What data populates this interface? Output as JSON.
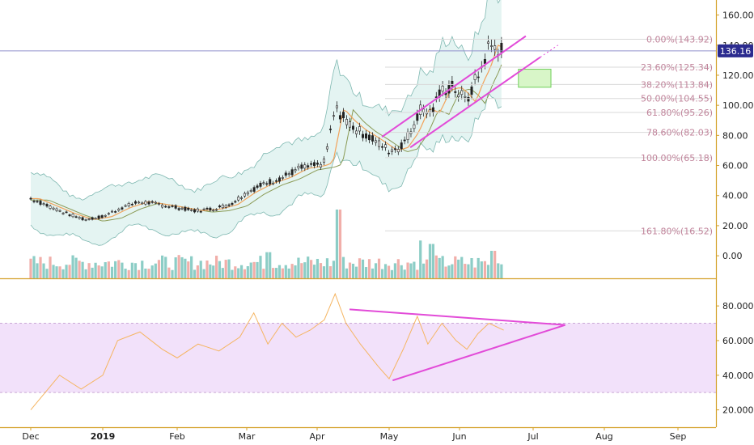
{
  "colors": {
    "background": "#ffffff",
    "axis": "#d4a12a",
    "bollinger_fill": "#e4f4f2",
    "bollinger_line": "#7fb8b1",
    "candle_up": "#222222",
    "candle_down": "#222222",
    "ma_fast": "#f2a25a",
    "ma_slow": "#8a9a55",
    "volume_up": "#7fc8c0",
    "volume_down": "#f0a5a0",
    "channel": "#e24bd8",
    "fib_line": "#d9d9d9",
    "fib_label": "#c0839a",
    "price_line": "#9090cc",
    "price_badge": "#2b2b8f",
    "target_box_fill": "#d8f6c8",
    "target_box_stroke": "#6fcf5a",
    "rsi_band": "#f2e1fa",
    "rsi_line": "#f5b562",
    "rsi_triangle": "#e24bd8"
  },
  "chart_data": [
    {
      "type": "candlestick",
      "panel": "price",
      "x": [
        "Dec",
        "2019",
        "Feb",
        "Mar",
        "Apr",
        "May",
        "Jun",
        "Jul",
        "Aug",
        "Sep"
      ],
      "ylim": [
        -15,
        170
      ],
      "y_ticks": [
        "160.00",
        "140.00",
        "120.00",
        "100.00",
        "80.00",
        "60.00",
        "40.00",
        "20.00",
        "0.00"
      ],
      "last_price": "136.16",
      "fibonacci_levels": [
        {
          "label": "0.00%(143.92)",
          "value": 143.92
        },
        {
          "label": "23.60%(125.34)",
          "value": 125.34
        },
        {
          "label": "38.20%(113.84)",
          "value": 113.84
        },
        {
          "label": "50.00%(104.55)",
          "value": 104.55
        },
        {
          "label": "61.80%(95.26)",
          "value": 95.26
        },
        {
          "label": "78.60%(82.03)",
          "value": 82.03
        },
        {
          "label": "100.00%(65.18)",
          "value": 65.18
        },
        {
          "label": "161.80%(16.52)",
          "value": 16.52
        }
      ],
      "close_series": [
        {
          "month": 0.0,
          "value": 38
        },
        {
          "month": 0.25,
          "value": 33
        },
        {
          "month": 0.5,
          "value": 28
        },
        {
          "month": 0.75,
          "value": 24
        },
        {
          "month": 1.0,
          "value": 26
        },
        {
          "month": 1.25,
          "value": 32
        },
        {
          "month": 1.5,
          "value": 36
        },
        {
          "month": 1.75,
          "value": 34
        },
        {
          "month": 2.0,
          "value": 32
        },
        {
          "month": 2.25,
          "value": 30
        },
        {
          "month": 2.5,
          "value": 31
        },
        {
          "month": 2.75,
          "value": 34
        },
        {
          "month": 3.0,
          "value": 42
        },
        {
          "month": 3.25,
          "value": 48
        },
        {
          "month": 3.5,
          "value": 52
        },
        {
          "month": 3.75,
          "value": 58
        },
        {
          "month": 4.0,
          "value": 60
        },
        {
          "month": 4.1,
          "value": 62
        },
        {
          "month": 4.25,
          "value": 98
        },
        {
          "month": 4.4,
          "value": 90
        },
        {
          "month": 4.55,
          "value": 84
        },
        {
          "month": 4.75,
          "value": 78
        },
        {
          "month": 5.0,
          "value": 70
        },
        {
          "month": 5.15,
          "value": 72
        },
        {
          "month": 5.3,
          "value": 82
        },
        {
          "month": 5.45,
          "value": 98
        },
        {
          "month": 5.6,
          "value": 95
        },
        {
          "month": 5.75,
          "value": 110
        },
        {
          "month": 5.9,
          "value": 112
        },
        {
          "month": 6.0,
          "value": 108
        },
        {
          "month": 6.1,
          "value": 102
        },
        {
          "month": 6.2,
          "value": 115
        },
        {
          "month": 6.3,
          "value": 125
        },
        {
          "month": 6.4,
          "value": 140
        },
        {
          "month": 6.5,
          "value": 138
        },
        {
          "month": 6.6,
          "value": 136.16
        }
      ],
      "volume_series": [
        {
          "month": 4.3,
          "value": 100
        },
        {
          "month": 5.45,
          "value": 55
        },
        {
          "month": 5.6,
          "value": 50
        },
        {
          "month": 3.3,
          "value": 38
        },
        {
          "month": 6.45,
          "value": 40
        }
      ],
      "channel_lines": [
        {
          "from": {
            "month": 4.9,
            "value": 79
          },
          "to": {
            "month": 6.9,
            "value": 146
          }
        },
        {
          "from": {
            "month": 5.3,
            "value": 72
          },
          "to": {
            "month": 7.1,
            "value": 132
          }
        }
      ],
      "target_zone": {
        "month_from": 6.8,
        "month_to": 7.25,
        "value_from": 112,
        "value_to": 124
      }
    },
    {
      "type": "line",
      "panel": "rsi",
      "x": [
        "Dec",
        "2019",
        "Feb",
        "Mar",
        "Apr",
        "May",
        "Jun",
        "Jul",
        "Aug",
        "Sep"
      ],
      "ylim": [
        10,
        95
      ],
      "y_ticks": [
        "80.0000",
        "60.0000",
        "40.0000",
        "20.0000"
      ],
      "band": [
        30,
        70
      ],
      "series": [
        {
          "month": 0.0,
          "value": 20
        },
        {
          "month": 0.2,
          "value": 30
        },
        {
          "month": 0.4,
          "value": 40
        },
        {
          "month": 0.7,
          "value": 32
        },
        {
          "month": 1.0,
          "value": 40
        },
        {
          "month": 1.2,
          "value": 60
        },
        {
          "month": 1.5,
          "value": 65
        },
        {
          "month": 1.8,
          "value": 55
        },
        {
          "month": 2.0,
          "value": 50
        },
        {
          "month": 2.3,
          "value": 58
        },
        {
          "month": 2.6,
          "value": 54
        },
        {
          "month": 2.9,
          "value": 62
        },
        {
          "month": 3.1,
          "value": 76
        },
        {
          "month": 3.3,
          "value": 58
        },
        {
          "month": 3.5,
          "value": 70
        },
        {
          "month": 3.7,
          "value": 62
        },
        {
          "month": 3.9,
          "value": 66
        },
        {
          "month": 4.1,
          "value": 72
        },
        {
          "month": 4.25,
          "value": 87
        },
        {
          "month": 4.4,
          "value": 70
        },
        {
          "month": 4.6,
          "value": 58
        },
        {
          "month": 4.85,
          "value": 45
        },
        {
          "month": 5.0,
          "value": 38
        },
        {
          "month": 5.2,
          "value": 55
        },
        {
          "month": 5.4,
          "value": 74
        },
        {
          "month": 5.55,
          "value": 58
        },
        {
          "month": 5.75,
          "value": 70
        },
        {
          "month": 5.95,
          "value": 60
        },
        {
          "month": 6.1,
          "value": 55
        },
        {
          "month": 6.25,
          "value": 64
        },
        {
          "month": 6.4,
          "value": 70
        },
        {
          "month": 6.6,
          "value": 66
        }
      ],
      "triangle": {
        "upper": {
          "from": {
            "month": 4.45,
            "value": 78
          },
          "to": {
            "month": 7.45,
            "value": 69
          }
        },
        "lower": {
          "from": {
            "month": 5.05,
            "value": 37
          },
          "to": {
            "month": 7.45,
            "value": 69
          }
        }
      }
    }
  ]
}
